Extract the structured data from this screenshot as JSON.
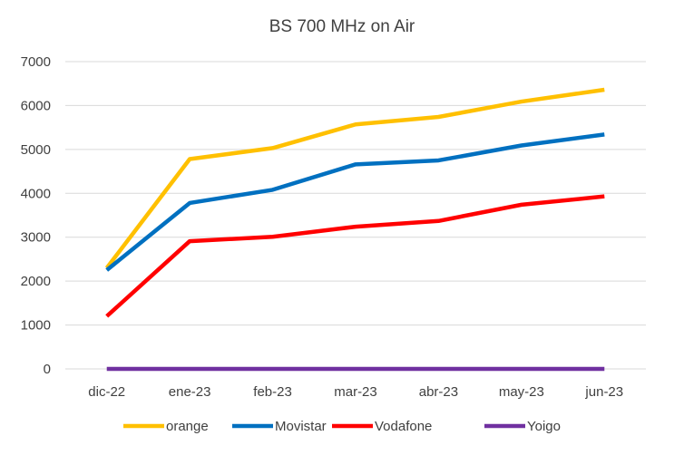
{
  "chart_data": {
    "type": "line",
    "title": "BS 700 MHz on Air",
    "xlabel": "",
    "ylabel": "",
    "categories": [
      "dic-22",
      "ene-23",
      "feb-23",
      "mar-23",
      "abr-23",
      "may-23",
      "jun-23"
    ],
    "ylim": [
      0,
      7000
    ],
    "yticks": [
      0,
      1000,
      2000,
      3000,
      4000,
      5000,
      6000,
      7000
    ],
    "grid": true,
    "legend_position": "bottom",
    "series": [
      {
        "name": "orange",
        "color": "#FFC000",
        "values": [
          2300,
          4780,
          5030,
          5570,
          5740,
          6090,
          6360
        ]
      },
      {
        "name": "Movistar",
        "color": "#0070C0",
        "values": [
          2250,
          3780,
          4080,
          4660,
          4750,
          5090,
          5340
        ]
      },
      {
        "name": "Vodafone",
        "color": "#FF0000",
        "values": [
          1200,
          2910,
          3010,
          3240,
          3370,
          3740,
          3930
        ]
      },
      {
        "name": "Yoigo",
        "color": "#7030A0",
        "values": [
          0,
          0,
          0,
          0,
          0,
          0,
          0
        ]
      }
    ]
  }
}
